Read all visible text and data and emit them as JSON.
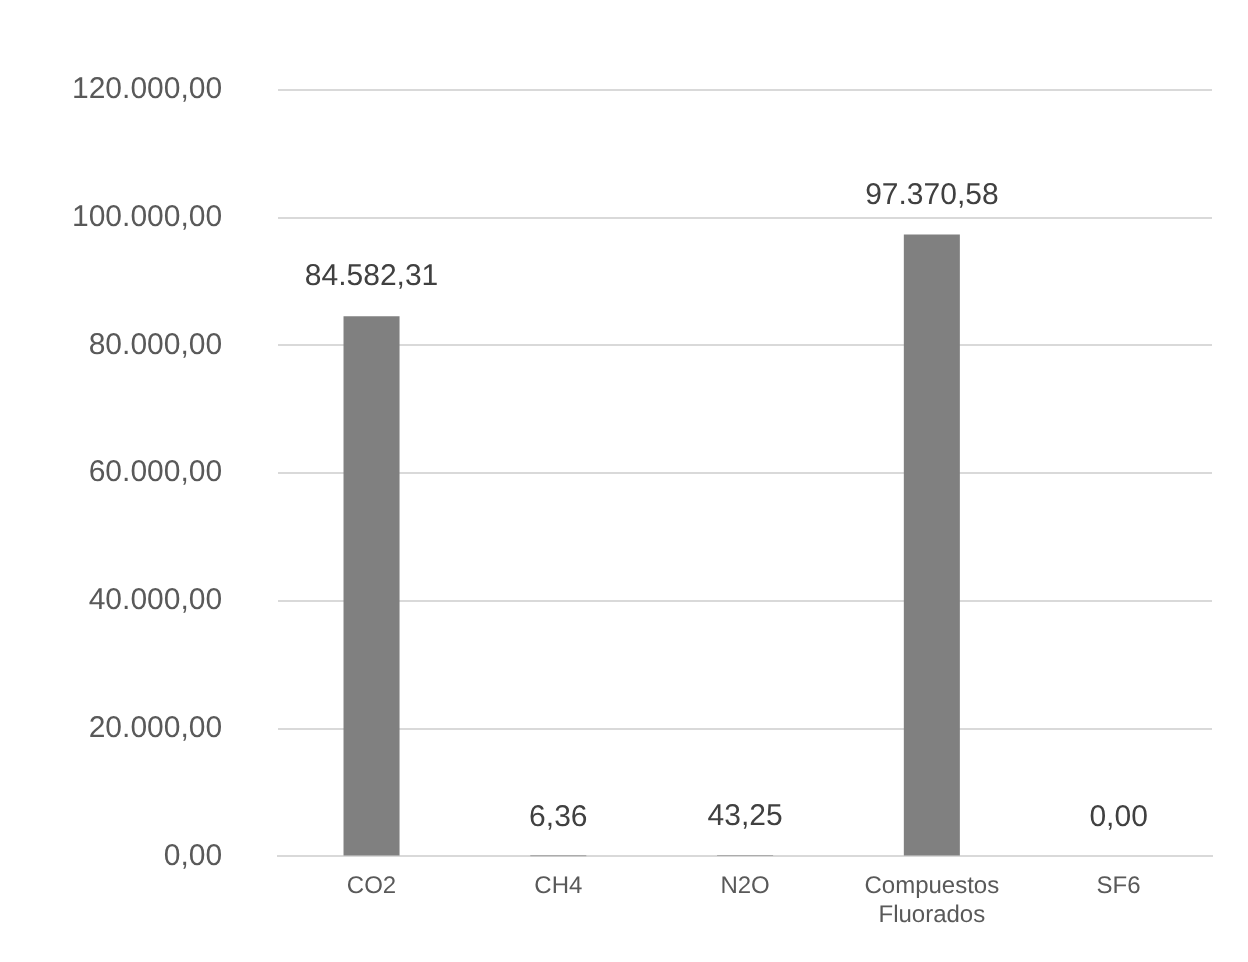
{
  "chart_data": {
    "type": "bar",
    "categories": [
      "CO2",
      "CH4",
      "N2O",
      "Compuestos Fluorados",
      "SF6"
    ],
    "values": [
      84582.31,
      6.36,
      43.25,
      97370.58,
      0
    ],
    "color": "#808080",
    "value_labels": [
      "84.582,31",
      "6,36",
      "43,25",
      "97.370,58",
      "0,00"
    ],
    "ylim": [
      0,
      120000
    ],
    "yticks": [
      {
        "value": 0,
        "label": "0,00"
      },
      {
        "value": 20000,
        "label": "20.000,00"
      },
      {
        "value": 40000,
        "label": "40.000,00"
      },
      {
        "value": 60000,
        "label": "60.000,00"
      },
      {
        "value": 80000,
        "label": "80.000,00"
      },
      {
        "value": 100000,
        "label": "100.000,00"
      },
      {
        "value": 120000,
        "label": "120.000,00"
      }
    ],
    "grid": "y",
    "legend": false
  }
}
